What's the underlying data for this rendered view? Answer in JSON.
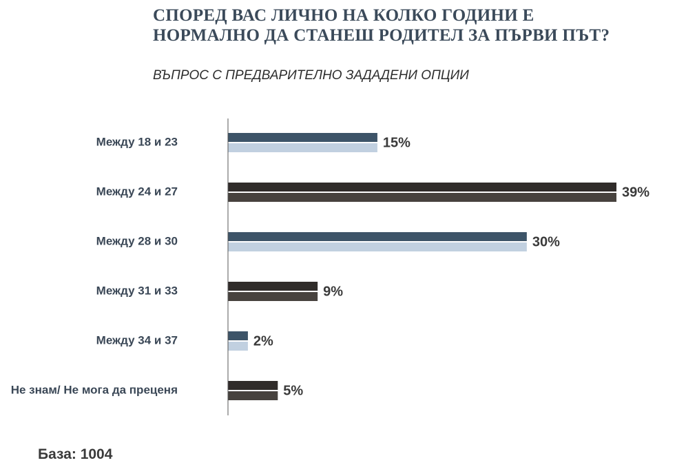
{
  "header": {
    "title": "СПОРЕД ВАС ЛИЧНО НА КОЛКО ГОДИНИ Е НОРМАЛНО ДА СТАНЕШ РОДИТЕЛ ЗА ПЪРВИ ПЪТ?",
    "subtitle": "ВЪПРОС С ПРЕДВАРИТЕЛНО ЗАДАДЕНИ ОПЦИИ"
  },
  "footer": {
    "base": "База: 1004"
  },
  "chart_data": {
    "type": "bar",
    "orientation": "horizontal",
    "categories": [
      "Между 18 и 23",
      "Между 24 и 27",
      "Между 28 и 30",
      "Между 31 и 33",
      "Между 34 и 37",
      "Не знам/ Не мога да преценя"
    ],
    "values": [
      15,
      39,
      30,
      9,
      2,
      5
    ],
    "value_labels": [
      "15%",
      "39%",
      "30%",
      "9%",
      "2%",
      "5%"
    ],
    "unit": "%",
    "xlim": [
      0,
      39
    ],
    "grid": false,
    "legend": "none",
    "colors": {
      "blue_top": "#3d5468",
      "blue_bottom": "#c1d0e0",
      "dark_top": "#302c2a",
      "dark_bottom": "#47423e",
      "axis": "#555555",
      "label": "#3a4756",
      "value_label": "#3a3a3a"
    },
    "bar_styles": [
      "blue",
      "dark",
      "blue",
      "dark",
      "blue",
      "dark"
    ]
  }
}
